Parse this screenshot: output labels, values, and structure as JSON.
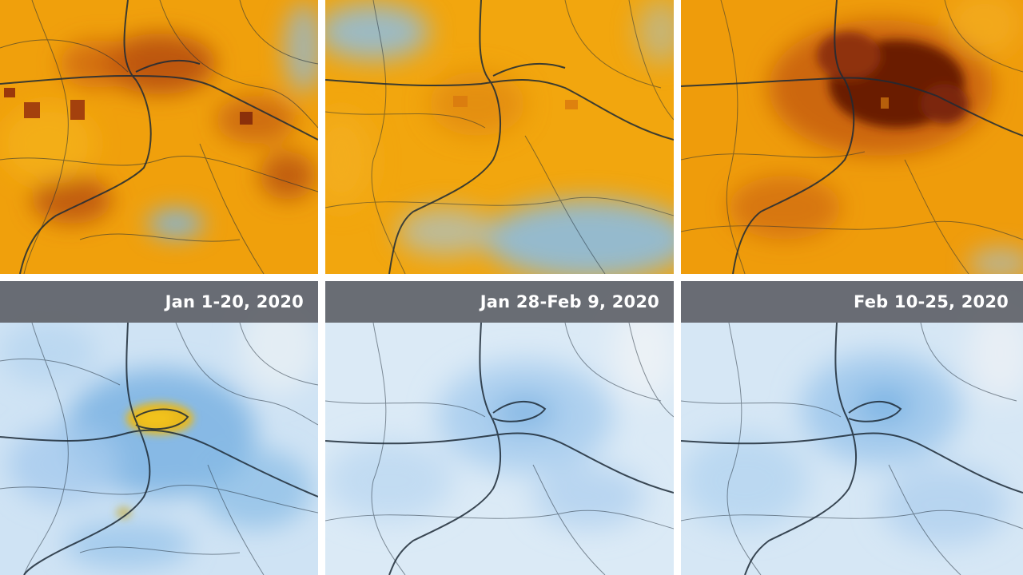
{
  "periods": [
    {
      "label": "Jan 1-20, 2020"
    },
    {
      "label": "Jan 28-Feb 9, 2020"
    },
    {
      "label": "Feb 10-25, 2020"
    }
  ],
  "colors": {
    "orange": "#f2a20a",
    "dark_orange": "#c7520c",
    "very_dark": "#5c1905",
    "yellow": "#f2be1a",
    "light_blue": "#d6e8f6",
    "mid_blue": "#8ec0e8",
    "blue": "#5ea4de",
    "road": "#1d2a36",
    "label_bar": "#5f6268"
  }
}
